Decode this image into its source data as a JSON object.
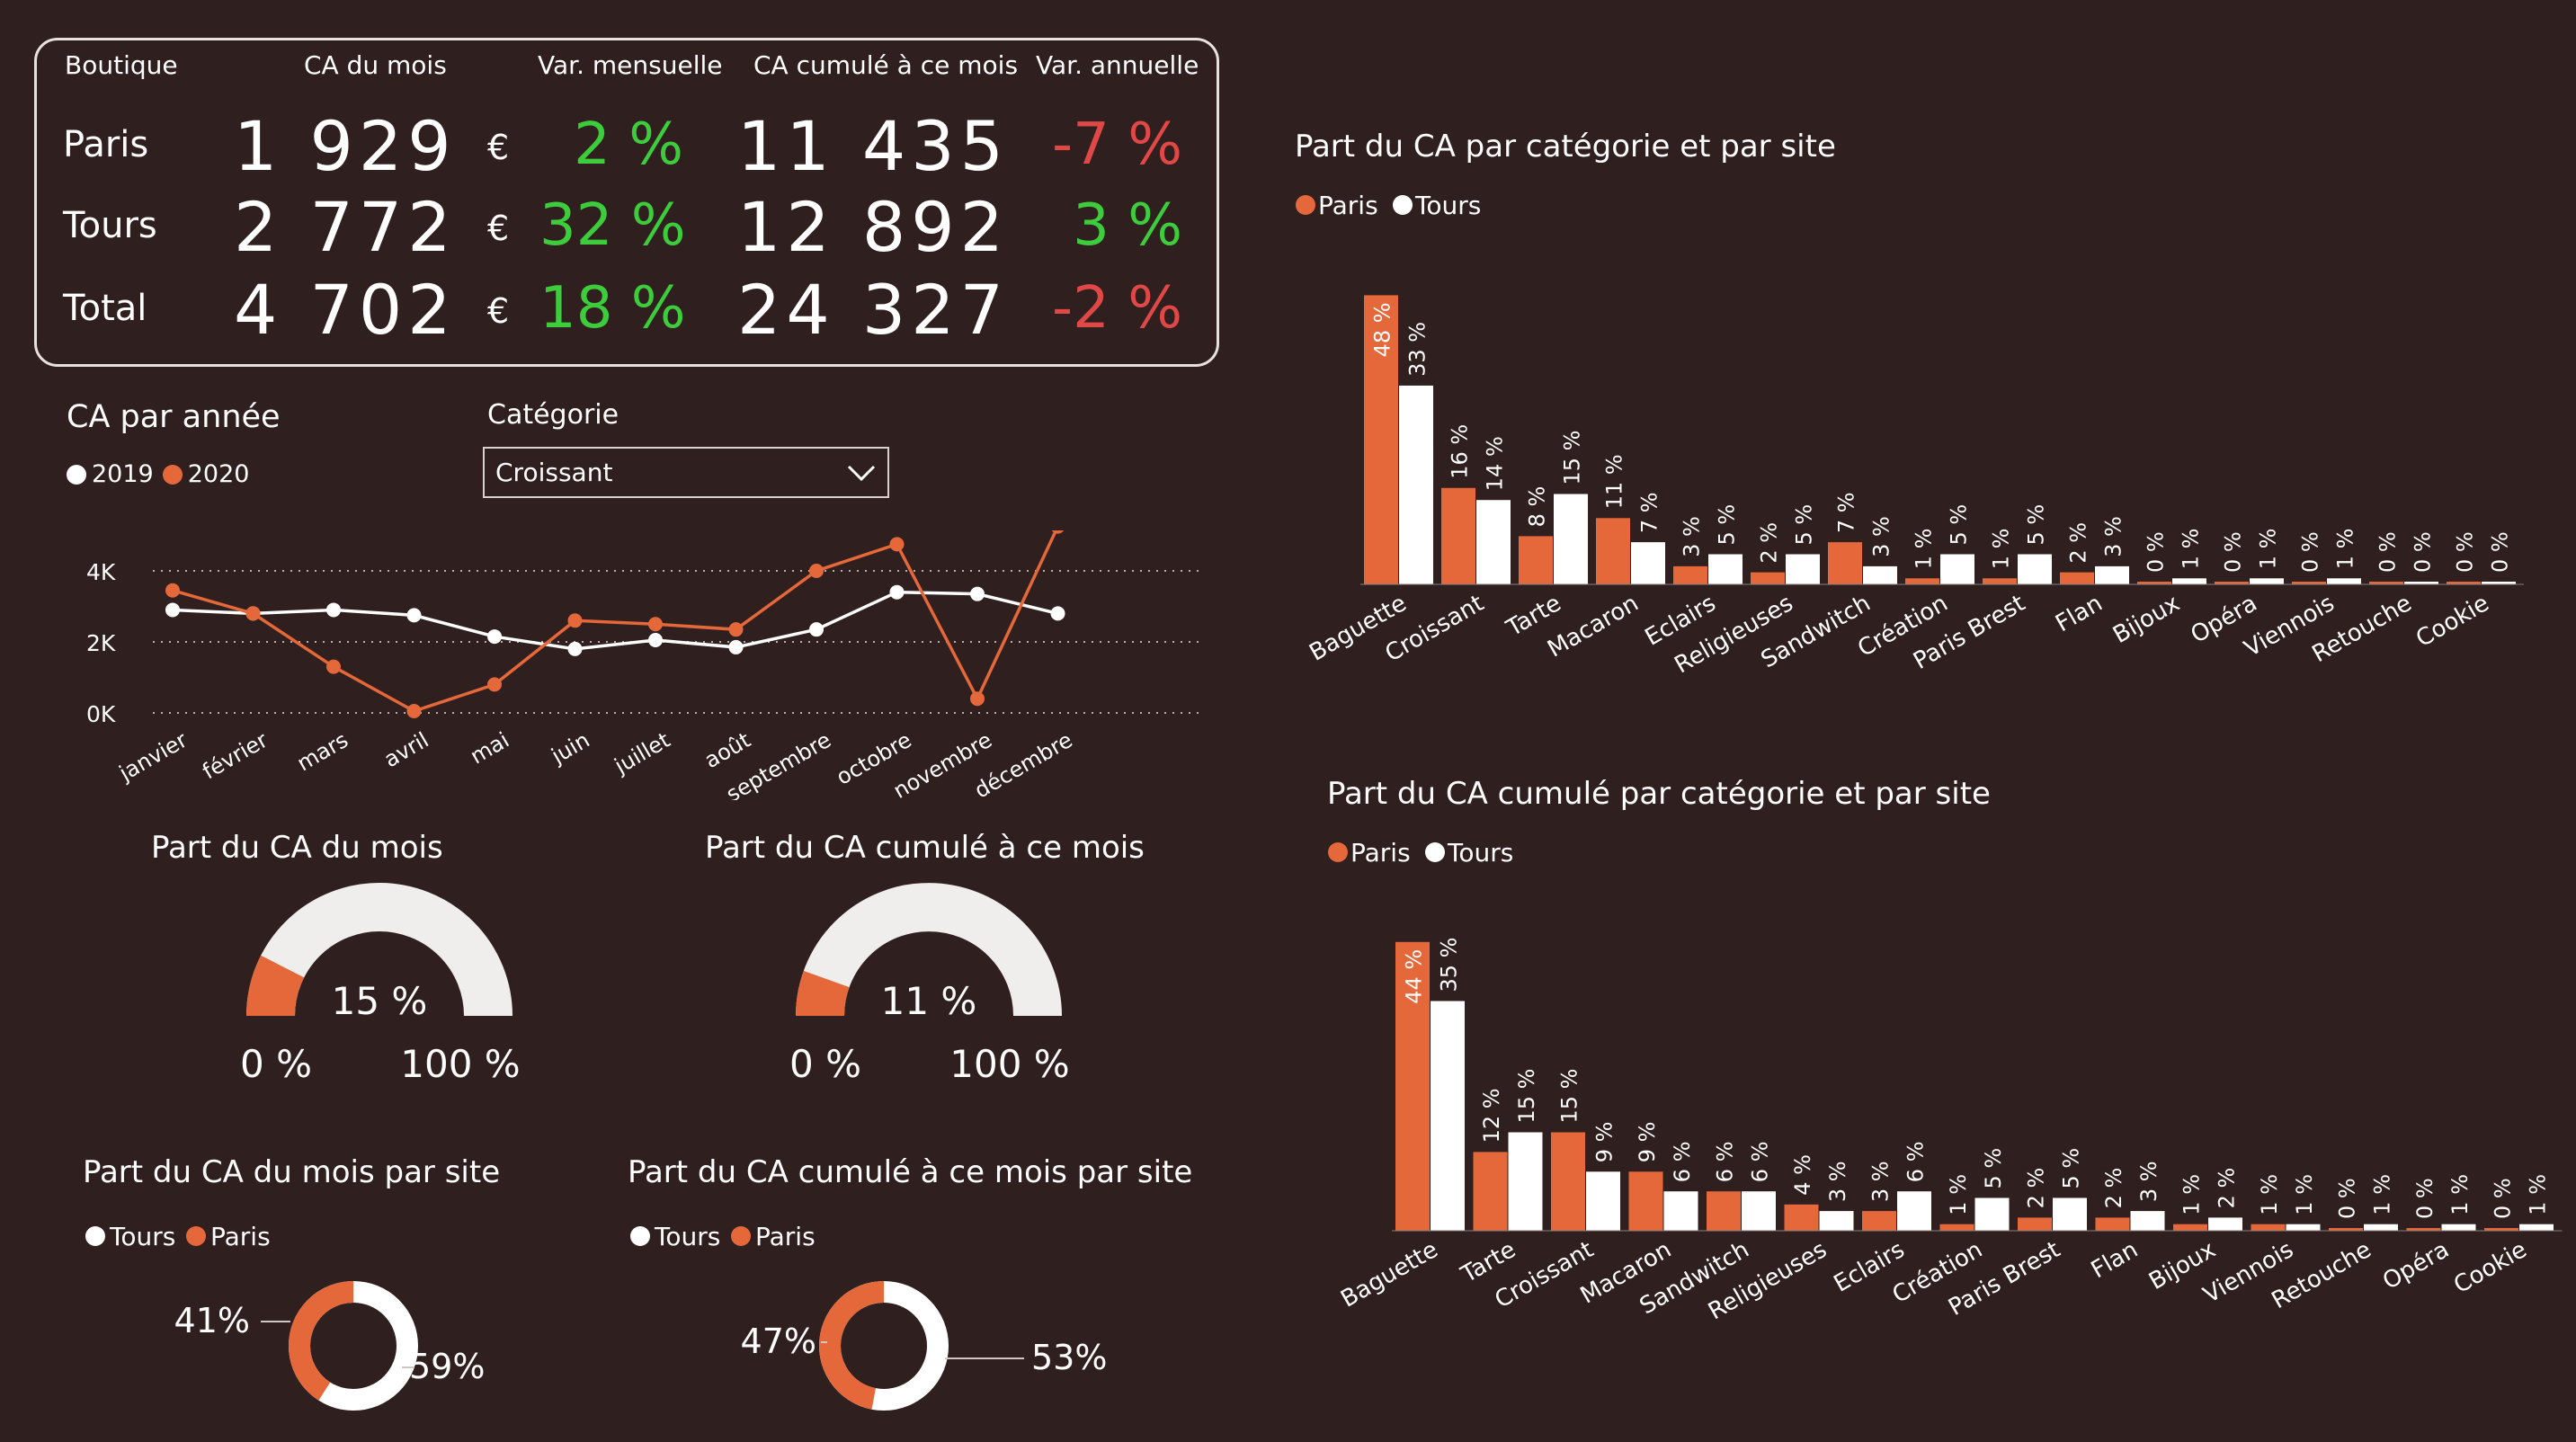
{
  "colors": {
    "background": "#2f1f1e",
    "paris": "#e5683a",
    "tours": "#ffffff",
    "green": "#3ccc3c",
    "red": "#e04848",
    "gauge_bg": "#f0eeed"
  },
  "kpi": {
    "headers": [
      "Boutique",
      "CA du mois",
      "Var. mensuelle",
      "CA cumulé à ce mois",
      "Var. annuelle"
    ],
    "currency": "€",
    "rows": [
      {
        "label": "Paris",
        "ca": "1 929",
        "var_m": "2 %",
        "cumul": "11 435",
        "var_a": "-7 %",
        "var_m_color": "green",
        "var_a_color": "red"
      },
      {
        "label": "Tours",
        "ca": "2 772",
        "var_m": "32 %",
        "cumul": "12 892",
        "var_a": "3 %",
        "var_m_color": "green",
        "var_a_color": "green"
      },
      {
        "label": "Total",
        "ca": "4 702",
        "var_m": "18 %",
        "cumul": "24 327",
        "var_a": "-2 %",
        "var_m_color": "green",
        "var_a_color": "red"
      }
    ]
  },
  "line_section": {
    "title": "CA par année",
    "filter_label": "Catégorie",
    "filter_value": "Croissant",
    "chevron_icon": "chevron-down-icon"
  },
  "gauges": [
    {
      "title": "Part du CA du mois",
      "value": 15,
      "value_label": "15 %",
      "min_label": "0 %",
      "max_label": "100 %"
    },
    {
      "title": "Part du CA cumulé à ce mois",
      "value": 11,
      "value_label": "11 %",
      "min_label": "0 %",
      "max_label": "100 %"
    }
  ],
  "donuts": [
    {
      "title": "Part du CA du mois par site",
      "legend": [
        "Tours",
        "Paris"
      ],
      "paris_pct": 41,
      "tours_pct": 59,
      "paris_label": "41%",
      "tours_label": "59%"
    },
    {
      "title": "Part du CA cumulé à ce mois par site",
      "legend": [
        "Tours",
        "Paris"
      ],
      "paris_pct": 47,
      "tours_pct": 53,
      "paris_label": "47%",
      "tours_label": "53%"
    }
  ],
  "chart_data": [
    {
      "type": "line",
      "title": "CA par année",
      "categories": [
        "janvier",
        "février",
        "mars",
        "avril",
        "mai",
        "juin",
        "juillet",
        "août",
        "septembre",
        "octobre",
        "novembre",
        "décembre"
      ],
      "series": [
        {
          "name": "2019",
          "values": [
            2900,
            2800,
            2900,
            2750,
            2150,
            1800,
            2050,
            1850,
            2350,
            3400,
            3350,
            2800
          ]
        },
        {
          "name": "2020",
          "values": [
            3450,
            2800,
            1300,
            50,
            800,
            2600,
            2500,
            2350,
            4000,
            4750,
            400,
            5250
          ]
        }
      ],
      "y_ticks": [
        "0K",
        "2K",
        "4K"
      ],
      "ylim": [
        0,
        6000
      ],
      "grid": true,
      "legend": "top-left"
    },
    {
      "type": "bar",
      "title": "Part du CA par catégorie et par site",
      "categories": [
        "Baguette",
        "Croissant",
        "Tarte",
        "Macaron",
        "Eclairs",
        "Religieuses",
        "Sandwitch",
        "Création",
        "Paris Brest",
        "Flan",
        "Bijoux",
        "Opéra",
        "Viennois",
        "Retouche",
        "Cookie"
      ],
      "series": [
        {
          "name": "Paris",
          "values": [
            48,
            16,
            8,
            11,
            3,
            2,
            7,
            1,
            1,
            2,
            0,
            0,
            0,
            0,
            0
          ]
        },
        {
          "name": "Tours",
          "values": [
            33,
            14,
            15,
            7,
            5,
            5,
            3,
            5,
            5,
            3,
            1,
            1,
            1,
            0,
            0
          ]
        }
      ],
      "labels": {
        "Paris": [
          "48 %",
          "16 %",
          "8 %",
          "11 %",
          "3 %",
          "2 %",
          "7 %",
          "1 %",
          "1 %",
          "2 %",
          "0 %",
          "0 %",
          "0 %",
          "0 %",
          "0 %"
        ],
        "Tours": [
          "33 %",
          "14 %",
          "15 %",
          "7 %",
          "5 %",
          "5 %",
          "3 %",
          "5 %",
          "5 %",
          "3 %",
          "1 %",
          "1 %",
          "1 %",
          "0 %",
          "0 %"
        ]
      },
      "legend": "top-left"
    },
    {
      "type": "bar",
      "title": "Part du CA cumulé par catégorie et par site",
      "categories": [
        "Baguette",
        "Tarte",
        "Croissant",
        "Macaron",
        "Sandwitch",
        "Religieuses",
        "Eclairs",
        "Création",
        "Paris Brest",
        "Flan",
        "Bijoux",
        "Viennois",
        "Retouche",
        "Opéra",
        "Cookie"
      ],
      "series": [
        {
          "name": "Paris",
          "values": [
            44,
            12,
            15,
            9,
            6,
            4,
            3,
            1,
            2,
            2,
            1,
            1,
            0,
            0,
            0
          ]
        },
        {
          "name": "Tours",
          "values": [
            35,
            15,
            9,
            6,
            6,
            3,
            6,
            5,
            5,
            3,
            2,
            1,
            1,
            1,
            1
          ]
        }
      ],
      "labels": {
        "Paris": [
          "44 %",
          "12 %",
          "15 %",
          "9 %",
          "6 %",
          "4 %",
          "3 %",
          "1 %",
          "2 %",
          "2 %",
          "1 %",
          "1 %",
          "0 %",
          "0 %",
          "0 %"
        ],
        "Tours": [
          "35 %",
          "15 %",
          "9 %",
          "6 %",
          "6 %",
          "3 %",
          "6 %",
          "5 %",
          "5 %",
          "3 %",
          "2 %",
          "1 %",
          "1 %",
          "1 %",
          "1 %"
        ]
      },
      "legend": "top-left"
    }
  ]
}
